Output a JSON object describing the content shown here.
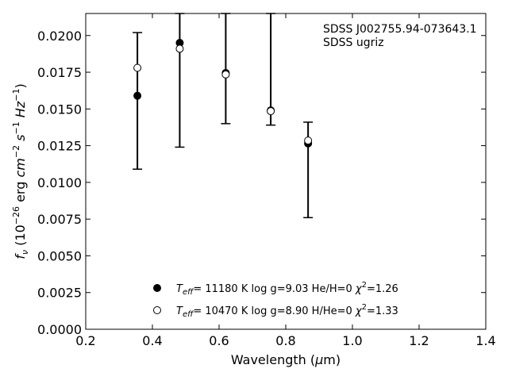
{
  "chart_data": {
    "type": "scatter",
    "xlabel": {
      "main": "Wavelength (",
      "mu": "μ",
      "rest": "m)"
    },
    "ylabel": {
      "f": "f",
      "nu": "ν",
      "a": " (10",
      "exp1": "−26",
      "b": " erg ",
      "cm": "cm",
      "exp2": "−2",
      "s": " s",
      "exp3": "−1",
      "hz": " Hz",
      "exp4": "−1",
      "c": ")"
    },
    "xlim": [
      0.2,
      1.4
    ],
    "ylim": [
      0.0,
      0.0215
    ],
    "xticks": [
      0.2,
      0.4,
      0.6,
      0.8,
      1.0,
      1.2,
      1.4
    ],
    "xtick_labels": [
      "0.2",
      "0.4",
      "0.6",
      "0.8",
      "1.0",
      "1.2",
      "1.4"
    ],
    "yticks": [
      0.0,
      0.0025,
      0.005,
      0.0075,
      0.01,
      0.0125,
      0.015,
      0.0175,
      0.02
    ],
    "ytick_labels": [
      "0.0000",
      "0.0025",
      "0.0050",
      "0.0075",
      "0.0100",
      "0.0125",
      "0.0150",
      "0.0175",
      "0.0200"
    ],
    "annotations": [
      "SDSS J002755.94-073643.1",
      "SDSS ugriz"
    ],
    "errorbars": {
      "x": [
        0.355,
        0.482,
        0.62,
        0.755,
        0.867
      ],
      "low": [
        0.0109,
        0.0124,
        0.014,
        0.0139,
        0.0076
      ],
      "high": [
        0.0202,
        0.0215,
        0.0215,
        0.0215,
        0.0141
      ]
    },
    "series": [
      {
        "marker": "filled",
        "x": [
          0.355,
          0.482,
          0.62,
          0.755,
          0.867
        ],
        "y": [
          0.0159,
          0.0195,
          0.01745,
          0.0149,
          0.01265
        ],
        "label": {
          "t": "T",
          "sub": "eff",
          "rest": "= 11180 K  log g=9.03  He/H=0  ",
          "chi": "χ",
          "sup": "2",
          "end": "=1.26"
        }
      },
      {
        "marker": "open",
        "x": [
          0.355,
          0.482,
          0.62,
          0.755,
          0.867
        ],
        "y": [
          0.0178,
          0.0191,
          0.01735,
          0.01485,
          0.01285
        ],
        "label": {
          "t": "T",
          "sub": "eff",
          "rest": "= 10470 K  log g=8.90  H/He=0  ",
          "chi": "χ",
          "sup": "2",
          "end": "=1.33"
        }
      }
    ]
  }
}
